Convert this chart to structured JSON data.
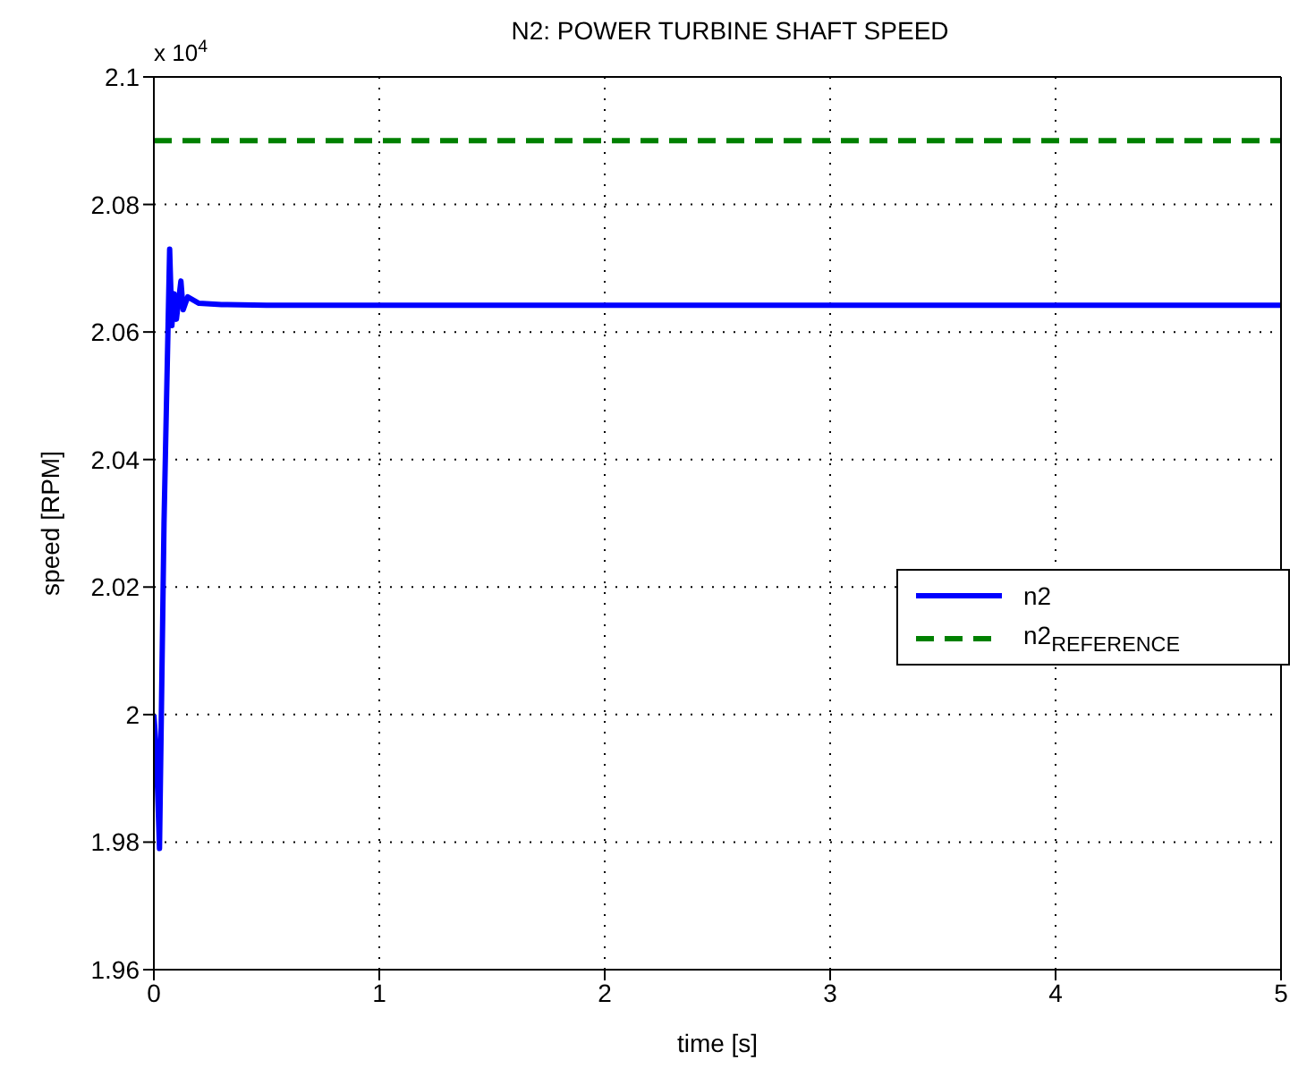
{
  "chart_data": {
    "type": "line",
    "title": "N2: POWER TURBINE SHAFT SPEED",
    "xlabel": "time [s]",
    "ylabel": "speed [RPM]",
    "annotations": [
      "x 10$^{4}$"
    ],
    "series": [
      {
        "name": "n2",
        "color": "#0000ff",
        "line_style": "solid",
        "x": [
          0,
          0.01,
          0.025,
          0.045,
          0.07,
          0.08,
          0.09,
          0.1,
          0.12,
          0.13,
          0.15,
          0.2,
          0.3,
          0.5,
          1,
          2,
          3,
          4,
          5
        ],
        "values": [
          2.0,
          1.995,
          1.979,
          2.03,
          2.073,
          2.061,
          2.066,
          2.062,
          2.068,
          2.0635,
          2.0655,
          2.0645,
          2.0643,
          2.0642,
          2.0642,
          2.0642,
          2.0642,
          2.0642,
          2.0642
        ]
      },
      {
        "name": "n2$_{REFERENCE}$",
        "color": "#008000",
        "line_style": "dashed",
        "x": [
          0,
          5
        ],
        "values": [
          2.09,
          2.09
        ]
      }
    ],
    "xlim": [
      0,
      5
    ],
    "xticks": [
      0,
      1,
      2,
      3,
      4,
      5
    ],
    "ylim": [
      1.96,
      2.1
    ],
    "yticks": [
      1.96,
      1.98,
      2,
      2.02,
      2.04,
      2.06,
      2.08,
      2.1
    ],
    "grid": true,
    "legend": "right",
    "marker": "none"
  }
}
